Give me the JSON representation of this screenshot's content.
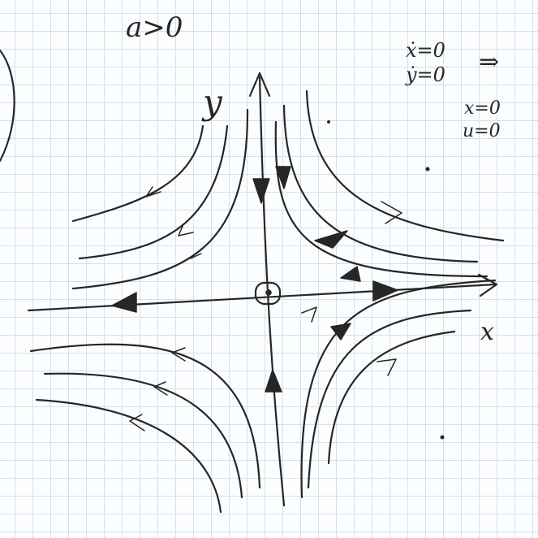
{
  "board": {
    "condition": "a>0",
    "y_axis_label": "y",
    "x_axis_label": "x",
    "equations": [
      "ẋ=0",
      "ẏ=0"
    ],
    "implies": "⇒",
    "result": [
      "x=0",
      "u=0"
    ]
  },
  "colors": {
    "ink": "#262626",
    "grid": "#d4e0ec",
    "paper": "#fbfdfe"
  }
}
